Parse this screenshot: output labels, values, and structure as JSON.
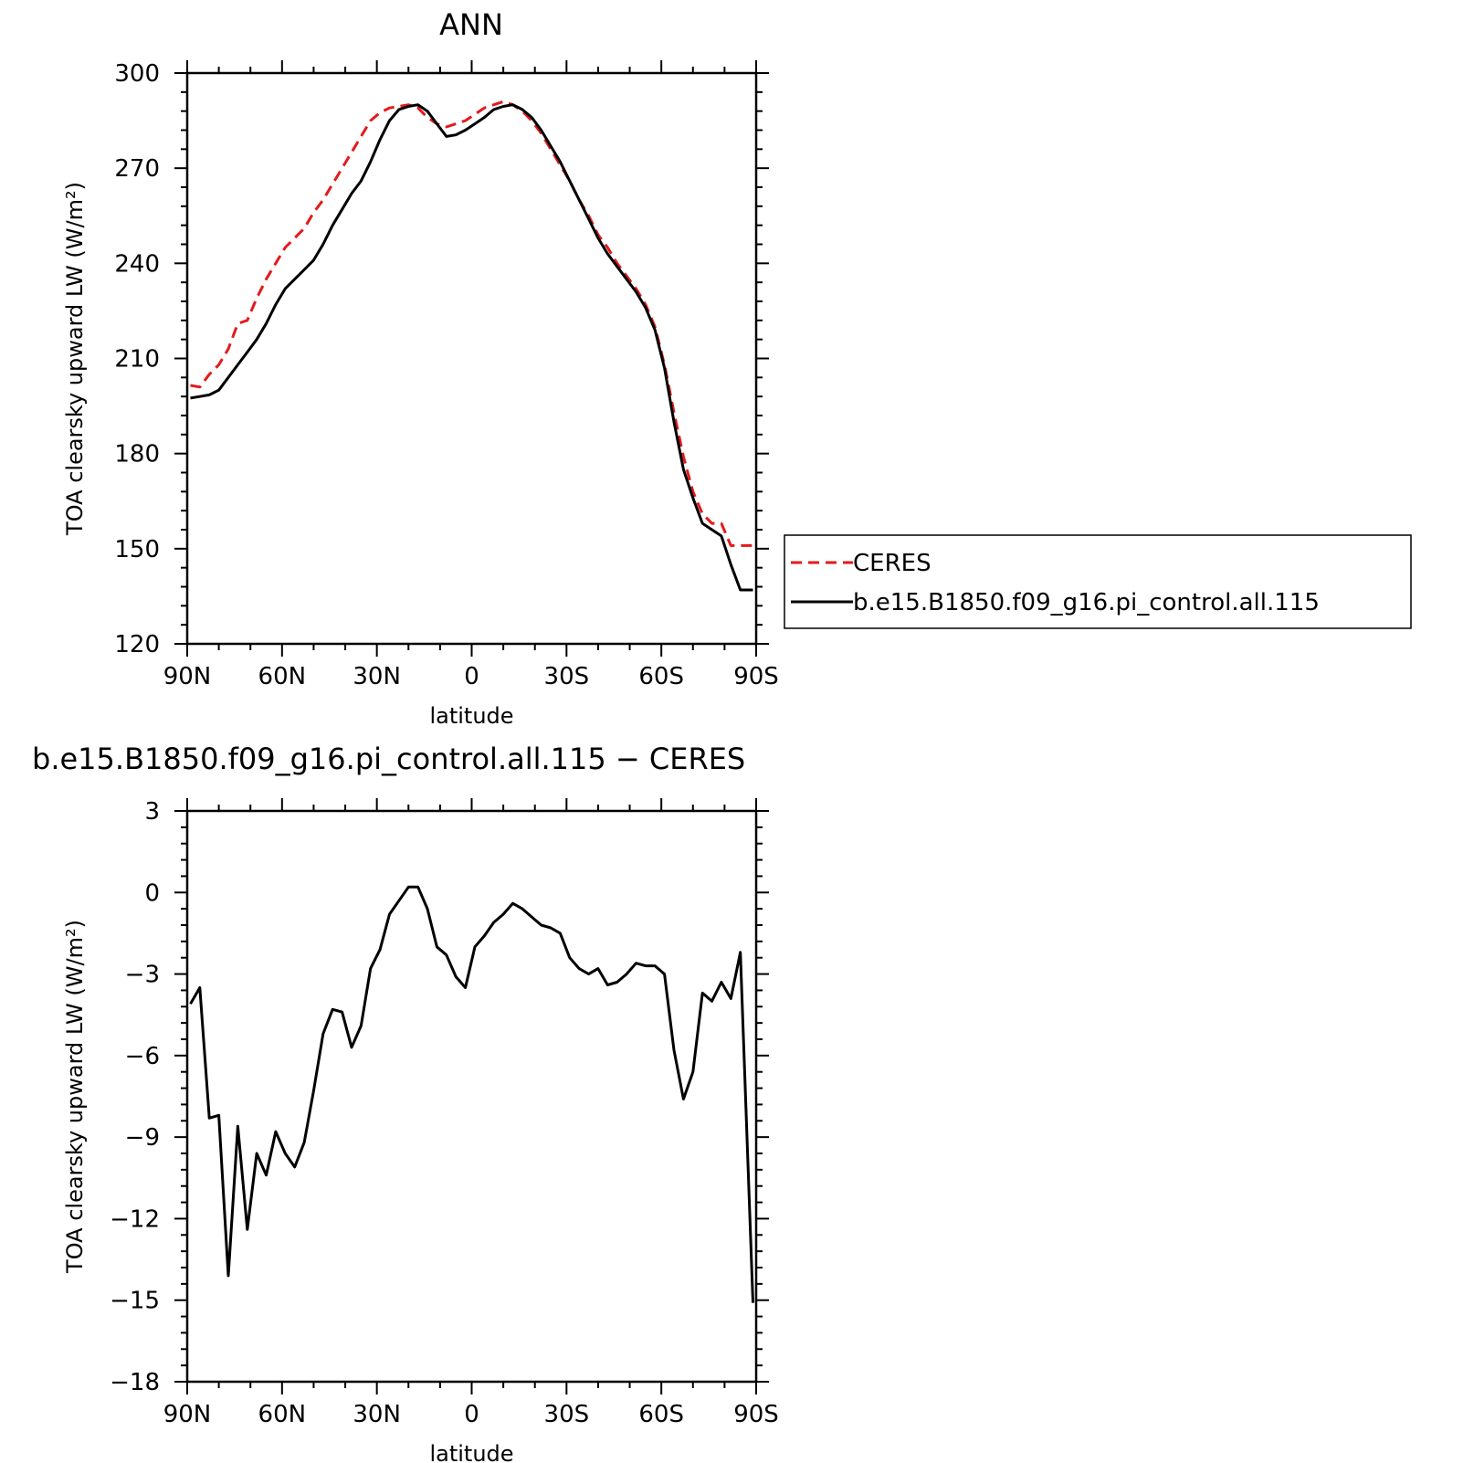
{
  "chart_data": [
    {
      "type": "line",
      "title": "ANN",
      "xlabel": "latitude",
      "ylabel": "TOA clearsky upward LW (W/m²)",
      "xlim": [
        90,
        -90
      ],
      "ylim": [
        120,
        300
      ],
      "x_ticks": [
        90,
        60,
        30,
        0,
        -30,
        -60,
        -90
      ],
      "x_tick_labels": [
        "90N",
        "60N",
        "30N",
        "0",
        "30S",
        "60S",
        "90S"
      ],
      "y_ticks": [
        120,
        150,
        180,
        210,
        240,
        270,
        300
      ],
      "y_tick_labels": [
        "120",
        "150",
        "180",
        "210",
        "240",
        "270",
        "300"
      ],
      "legend": "right",
      "series": [
        {
          "name": "CERES",
          "color": "#e41a1c",
          "dash": "dashed",
          "x": [
            89,
            86,
            83,
            80,
            77,
            74,
            71,
            68,
            65,
            62,
            59,
            56,
            53,
            50,
            47,
            44,
            41,
            38,
            35,
            32,
            29,
            26,
            23,
            20,
            17,
            14,
            11,
            8,
            5,
            2,
            -1,
            -4,
            -7,
            -10,
            -13,
            -16,
            -19,
            -22,
            -25,
            -28,
            -31,
            -34,
            -37,
            -40,
            -43,
            -46,
            -49,
            -52,
            -55,
            -58,
            -61,
            -64,
            -67,
            -70,
            -73,
            -76,
            -79,
            -82,
            -85,
            -89
          ],
          "y": [
            201.5,
            201,
            205,
            208,
            213,
            221,
            222,
            229,
            235,
            240,
            245,
            248,
            251,
            256,
            260,
            265,
            270,
            275,
            280,
            285,
            287.5,
            289,
            289.5,
            290,
            289,
            286,
            284,
            283,
            284,
            285,
            287,
            289,
            290,
            291,
            290,
            288,
            285,
            281,
            276,
            271,
            266,
            260,
            255,
            249,
            245,
            240,
            236,
            232,
            227,
            220,
            208,
            193,
            179,
            168,
            161,
            158,
            158,
            151,
            151,
            151
          ]
        },
        {
          "name": "b.e15.B1850.f09_g16.pi_control.all.115",
          "color": "#000000",
          "dash": "solid",
          "x": [
            89,
            86,
            83,
            80,
            77,
            74,
            71,
            68,
            65,
            62,
            59,
            56,
            53,
            50,
            47,
            44,
            41,
            38,
            35,
            32,
            29,
            26,
            23,
            20,
            17,
            14,
            11,
            8,
            5,
            2,
            -1,
            -4,
            -7,
            -10,
            -13,
            -16,
            -19,
            -22,
            -25,
            -28,
            -31,
            -34,
            -37,
            -40,
            -43,
            -46,
            -49,
            -52,
            -55,
            -58,
            -61,
            -64,
            -67,
            -70,
            -73,
            -76,
            -79,
            -82,
            -85,
            -89
          ],
          "y": [
            197.5,
            198,
            198.5,
            200,
            204,
            208,
            212,
            216,
            221,
            227,
            232,
            235,
            238,
            241,
            246,
            252,
            257,
            262,
            266,
            272,
            279,
            285,
            288.5,
            289.5,
            290,
            288,
            284,
            280,
            280.5,
            282,
            284,
            286,
            288.5,
            289.5,
            290,
            288.5,
            286,
            282,
            277,
            272,
            266,
            260,
            254,
            248,
            243,
            239,
            235,
            231,
            226,
            219,
            207,
            190,
            175,
            166,
            158,
            156,
            154,
            145,
            137,
            137
          ]
        }
      ]
    },
    {
      "type": "line",
      "title": "b.e15.B1850.f09_g16.pi_control.all.115 − CERES",
      "xlabel": "latitude",
      "ylabel": "TOA clearsky upward LW (W/m²)",
      "xlim": [
        90,
        -90
      ],
      "ylim": [
        -18,
        3
      ],
      "x_ticks": [
        90,
        60,
        30,
        0,
        -30,
        -60,
        -90
      ],
      "x_tick_labels": [
        "90N",
        "60N",
        "30N",
        "0",
        "30S",
        "60S",
        "90S"
      ],
      "y_ticks": [
        -18,
        -15,
        -12,
        -9,
        -6,
        -3,
        0,
        3
      ],
      "y_tick_labels": [
        "−18",
        "−15",
        "−12",
        "−9",
        "−6",
        "−3",
        "0",
        "3"
      ],
      "series": [
        {
          "color": "#000000",
          "dash": "solid",
          "x": [
            89,
            86,
            83,
            80,
            77,
            74,
            71,
            68,
            65,
            62,
            59,
            56,
            53,
            50,
            47,
            44,
            41,
            38,
            35,
            32,
            29,
            26,
            23,
            20,
            17,
            14,
            11,
            8,
            5,
            2,
            -1,
            -4,
            -7,
            -10,
            -13,
            -16,
            -19,
            -22,
            -25,
            -28,
            -31,
            -34,
            -37,
            -40,
            -43,
            -46,
            -49,
            -52,
            -55,
            -58,
            -61,
            -64,
            -67,
            -70,
            -73,
            -76,
            -79,
            -82,
            -85,
            -89
          ],
          "y": [
            -4.1,
            -3.5,
            -8.3,
            -8.2,
            -14.1,
            -8.6,
            -12.4,
            -9.6,
            -10.4,
            -8.8,
            -9.6,
            -10.1,
            -9.2,
            -7.3,
            -5.2,
            -4.3,
            -4.4,
            -5.7,
            -4.9,
            -2.8,
            -2.1,
            -0.8,
            -0.3,
            0.2,
            0.2,
            -0.6,
            -2.0,
            -2.3,
            -3.1,
            -3.5,
            -2.0,
            -1.6,
            -1.1,
            -0.8,
            -0.4,
            -0.6,
            -0.9,
            -1.2,
            -1.3,
            -1.5,
            -2.4,
            -2.8,
            -3.0,
            -2.8,
            -3.4,
            -3.3,
            -3.0,
            -2.6,
            -2.7,
            -2.7,
            -3.0,
            -5.8,
            -7.6,
            -6.6,
            -3.7,
            -4.0,
            -3.3,
            -3.9,
            -2.2,
            -15.1
          ]
        }
      ]
    }
  ],
  "legend": {
    "entries": [
      {
        "label": "CERES",
        "color": "#e41a1c",
        "dash": "dashed"
      },
      {
        "label": "b.e15.B1850.f09_g16.pi_control.all.115",
        "color": "#000000",
        "dash": "solid"
      }
    ]
  }
}
